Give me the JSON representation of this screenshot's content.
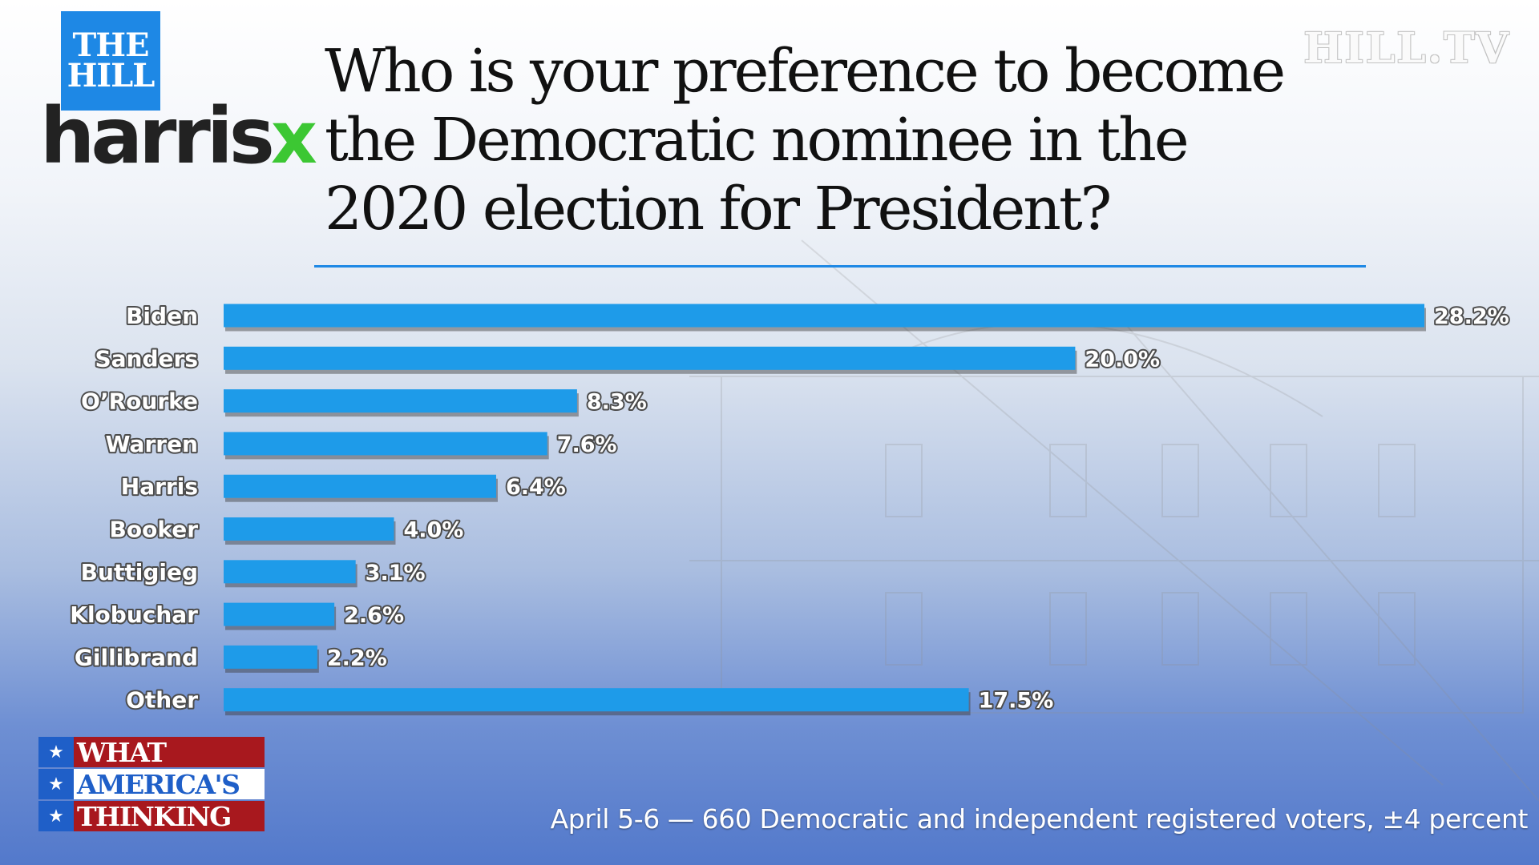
{
  "logos": {
    "the_hill_line1": "THE",
    "the_hill_line2": "HILL",
    "harrisx_word": "harris",
    "harrisx_x": "x",
    "hilltv": "HILL.TV",
    "wat_line1": "WHAT",
    "wat_line2": "AMERICA'S",
    "wat_line3": "THINKING",
    "star_glyph": "★"
  },
  "colors": {
    "bar": "#1e9be9",
    "accent_blue": "#1e88e5",
    "harrisx_green": "#3cc733",
    "wat_red": "#a8181e"
  },
  "chart_data": {
    "type": "bar",
    "orientation": "horizontal",
    "title": "Who is your preference to become the Democratic nominee in the 2020 election for President?",
    "categories": [
      "Biden",
      "Sanders",
      "O’Rourke",
      "Warren",
      "Harris",
      "Booker",
      "Buttigieg",
      "Klobuchar",
      "Gillibrand",
      "Other"
    ],
    "values": [
      28.2,
      20.0,
      8.3,
      7.6,
      6.4,
      4.0,
      3.1,
      2.6,
      2.2,
      17.5
    ],
    "value_labels": [
      "28.2%",
      "20.0%",
      "8.3%",
      "7.6%",
      "6.4%",
      "4.0%",
      "3.1%",
      "2.6%",
      "2.2%",
      "17.5%"
    ],
    "unit": "%",
    "xlim": [
      0,
      28.2
    ],
    "grid": false,
    "legend": "none"
  },
  "footnote": "April 5-6 — 660 Democratic and independent registered voters, ±4 percent"
}
